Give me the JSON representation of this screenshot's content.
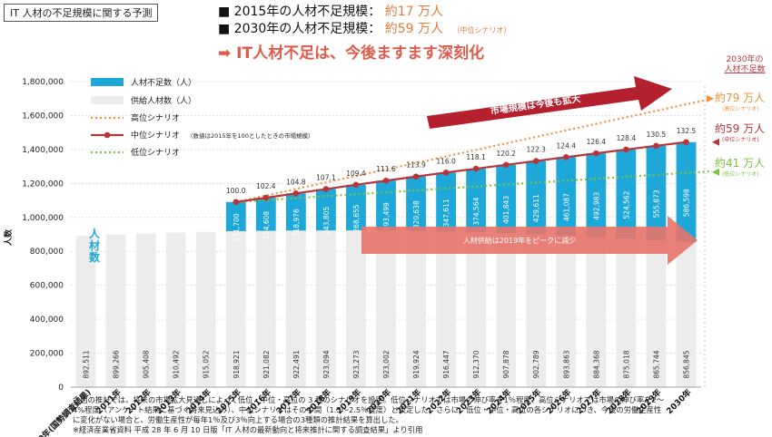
{
  "header": {
    "title": "IT 人材の不足規模に関する予測",
    "line1_label": "■ 2015年の人材不足規模：",
    "line1_value": "約17 万人",
    "line2_label": "■ 2030年の人材不足規模：",
    "line2_value": "約59 万人",
    "line2_note": "（中位シナリオ）",
    "message": "➡ IT人材不足は、今後ますます深刻化"
  },
  "annotations": {
    "right_title_line1": "2030年の",
    "right_title_line2": "人材不足数",
    "high_value": "約79 万人",
    "high_note": "(高位シナリオ)",
    "mid_value": "約59 万人",
    "mid_note": "(中位シナリオ)",
    "low_value": "約41 万人",
    "low_note": "(低位シナリオ)",
    "market_arrow": "市場規模は今後も拡大",
    "supply_arrow": "人材供給は2019年をピークに減少",
    "yaxis_side_label": "人材数",
    "ylabel": "人数"
  },
  "legend": {
    "shortage": "人材不足数（人）",
    "supply": "供給人材数（人）",
    "high": "高位シナリオ",
    "mid": "中位シナリオ",
    "mid_note": "（数値は2015年を100としたときの市場規模）",
    "low": "低位シナリオ"
  },
  "colors": {
    "shortage": "#1ea8d9",
    "supply": "#ececec",
    "high": "#f0923a",
    "mid": "#b8343b",
    "low": "#7cc242",
    "arrow_market": "#b5202e",
    "arrow_supply": "#e8736a"
  },
  "chart_data": {
    "type": "bar",
    "categories": [
      "2010年(国勢調査結果)",
      "2011年",
      "2012年",
      "2013年",
      "2014年",
      "2015年",
      "2016年",
      "2017年",
      "2018年",
      "2019年",
      "2020年",
      "2021年",
      "2022年",
      "2023年",
      "2024年",
      "2025年",
      "2026年",
      "2027年",
      "2028年",
      "2029年",
      "2030年"
    ],
    "ylim": [
      0,
      1800000
    ],
    "yticks": [
      0,
      200000,
      400000,
      600000,
      800000,
      1000000,
      1200000,
      1400000,
      1600000,
      1800000
    ],
    "ytick_labels": [
      "0",
      "200,000",
      "400,000",
      "600,000",
      "800,000",
      "1,000,000",
      "1,200,000",
      "1,400,000",
      "1,600,000",
      "1,800,000"
    ],
    "series": [
      {
        "name": "供給人材数（人）",
        "values": [
          892511,
          899266,
          905408,
          910492,
          915052,
          918921,
          921082,
          922491,
          923094,
          923273,
          923002,
          919924,
          916447,
          912370,
          907878,
          902789,
          893863,
          884368,
          875018,
          865744,
          856845
        ],
        "labels": [
          "892,511",
          "899,266",
          "905,408",
          "910,492",
          "915,052",
          "918,921",
          "921,082",
          "922,491",
          "923,094",
          "923,273",
          "923,002",
          "919,924",
          "916,447",
          "912,370",
          "907,878",
          "902,789",
          "893,863",
          "884,368",
          "875,018",
          "865,744",
          "856,845"
        ]
      },
      {
        "name": "人材不足数（人）",
        "values": [
          null,
          null,
          null,
          null,
          null,
          171700,
          194608,
          218976,
          243805,
          268655,
          293499,
          320638,
          347611,
          374564,
          401843,
          429611,
          461087,
          492983,
          524562,
          555873,
          586598
        ],
        "labels": [
          "",
          "",
          "",
          "",
          "",
          "171,700",
          "194,608",
          "218,976",
          "243,805",
          "268,655",
          "293,499",
          "320,638",
          "347,611",
          "374,564",
          "401,843",
          "429,611",
          "461,087",
          "492,983",
          "524,562",
          "555,873",
          "586,598"
        ]
      },
      {
        "name": "中位シナリオ",
        "index": [
          null,
          null,
          null,
          null,
          null,
          "100.0",
          "102.4",
          "104.8",
          "107.1",
          "109.4",
          "111.6",
          "113.9",
          "116.0",
          "118.1",
          "120.2",
          "122.3",
          "124.4",
          "126.4",
          "128.4",
          "130.5",
          "132.5"
        ]
      }
    ],
    "grid": true,
    "legend_position": "top-left"
  },
  "footnote": {
    "line1": "今回の推計では、将来の市場拡大見通しによって低位・中位・高位の 3 種のシナリオを設定。低位シナリオでは市場の伸び率を1％程度、高位シナリオでは市場の伸び率を2～",
    "line2": "4%程度（アンケート結果に基づく将来見込み）、中位シナリオはその中間（1.5～2.5％程度）と仮定した。さらに、低位・中位・高位の各シナリオにつき、今後の労働生産性",
    "line3": "に変化がない場合と、労働生産性が毎年1％及び3％向上する場合の3種類の推計結果を算出した。",
    "line4": "※経済産業省資料 平成 28 年 6 月 10 日版「IT 人材の最新動向と将来推計に関する調査結果」より引用"
  }
}
